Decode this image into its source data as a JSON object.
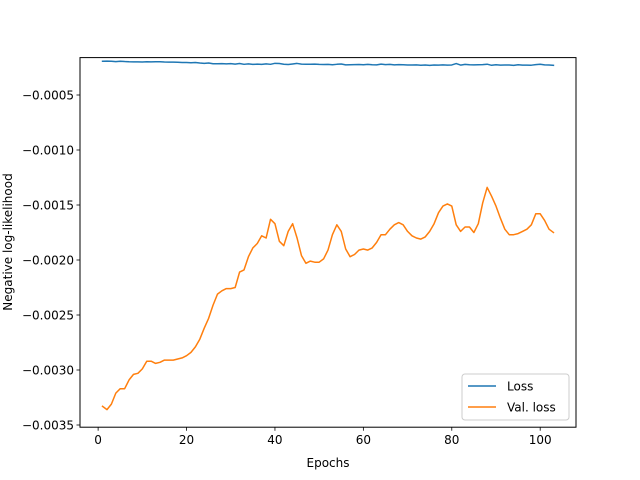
{
  "chart_data": {
    "type": "line",
    "title": "",
    "xlabel": "Epochs",
    "ylabel": "Negative log-likelihood",
    "xlim": [
      -4.1,
      108.1
    ],
    "ylim": [
      -0.00352,
      -0.00016
    ],
    "xticks": [
      0,
      20,
      40,
      60,
      80,
      100
    ],
    "yticks": [
      -0.0035,
      -0.003,
      -0.0025,
      -0.002,
      -0.0015,
      -0.001,
      -0.0005
    ],
    "ytick_labels": [
      "−0.0035",
      "−0.0030",
      "−0.0025",
      "−0.0020",
      "−0.0015",
      "−0.0010",
      "−0.0005"
    ],
    "xtick_labels": [
      "0",
      "20",
      "40",
      "60",
      "80",
      "100"
    ],
    "grid": false,
    "legend": {
      "location": "lower-right",
      "entries": [
        "Loss",
        "Val. loss"
      ]
    },
    "colors": {
      "Loss": "#1f77b4",
      "Val. loss": "#ff7f0e"
    },
    "series": [
      {
        "name": "Loss",
        "x": [
          1,
          2,
          3,
          4,
          5,
          6,
          7,
          8,
          9,
          10,
          11,
          12,
          13,
          14,
          15,
          16,
          17,
          18,
          19,
          20,
          21,
          22,
          23,
          24,
          25,
          26,
          27,
          28,
          29,
          30,
          31,
          32,
          33,
          34,
          35,
          36,
          37,
          38,
          39,
          40,
          41,
          42,
          43,
          44,
          45,
          46,
          47,
          48,
          49,
          50,
          51,
          52,
          53,
          54,
          55,
          56,
          57,
          58,
          59,
          60,
          61,
          62,
          63,
          64,
          65,
          66,
          67,
          68,
          69,
          70,
          71,
          72,
          73,
          74,
          75,
          76,
          77,
          78,
          79,
          80,
          81,
          82,
          83,
          84,
          85,
          86,
          87,
          88,
          89,
          90,
          91,
          92,
          93,
          94,
          95,
          96,
          97,
          98,
          99,
          100,
          101,
          102,
          103
        ],
        "values": [
          -0.000193,
          -0.000192,
          -0.000193,
          -0.000197,
          -0.000193,
          -0.000196,
          -0.000198,
          -0.000199,
          -0.000199,
          -0.0002,
          -0.000198,
          -0.000199,
          -0.000198,
          -0.000198,
          -0.0002,
          -0.000201,
          -0.000201,
          -0.000202,
          -0.000205,
          -0.000204,
          -0.000207,
          -0.000205,
          -0.000209,
          -0.000212,
          -0.000209,
          -0.000216,
          -0.000216,
          -0.000215,
          -0.000217,
          -0.000215,
          -0.000219,
          -0.000214,
          -0.000221,
          -0.000217,
          -0.000222,
          -0.000219,
          -0.000222,
          -0.000217,
          -0.000221,
          -0.000212,
          -0.000214,
          -0.00022,
          -0.000223,
          -0.000218,
          -0.000213,
          -0.000219,
          -0.00022,
          -0.00022,
          -0.000219,
          -0.000222,
          -0.000223,
          -0.000222,
          -0.000225,
          -0.000221,
          -0.000218,
          -0.000226,
          -0.000225,
          -0.000224,
          -0.000223,
          -0.000225,
          -0.000222,
          -0.000225,
          -0.000226,
          -0.000219,
          -0.000224,
          -0.000222,
          -0.000226,
          -0.000224,
          -0.000225,
          -0.000227,
          -0.000227,
          -0.000226,
          -0.000229,
          -0.000227,
          -0.000231,
          -0.000227,
          -0.000228,
          -0.000226,
          -0.000228,
          -0.000227,
          -0.000214,
          -0.000228,
          -0.000222,
          -0.000225,
          -0.000226,
          -0.000225,
          -0.000224,
          -0.00022,
          -0.00023,
          -0.000225,
          -0.000228,
          -0.000227,
          -0.000227,
          -0.000231,
          -0.000225,
          -0.000228,
          -0.000228,
          -0.000229,
          -0.000224,
          -0.00022,
          -0.000226,
          -0.000227,
          -0.00023
        ]
      },
      {
        "name": "Val. loss",
        "x": [
          1,
          2,
          3,
          4,
          5,
          6,
          7,
          8,
          9,
          10,
          11,
          12,
          13,
          14,
          15,
          16,
          17,
          18,
          19,
          20,
          21,
          22,
          23,
          24,
          25,
          26,
          27,
          28,
          29,
          30,
          31,
          32,
          33,
          34,
          35,
          36,
          37,
          38,
          39,
          40,
          41,
          42,
          43,
          44,
          45,
          46,
          47,
          48,
          49,
          50,
          51,
          52,
          53,
          54,
          55,
          56,
          57,
          58,
          59,
          60,
          61,
          62,
          63,
          64,
          65,
          66,
          67,
          68,
          69,
          70,
          71,
          72,
          73,
          74,
          75,
          76,
          77,
          78,
          79,
          80,
          81,
          82,
          83,
          84,
          85,
          86,
          87,
          88,
          89,
          90,
          91,
          92,
          93,
          94,
          95,
          96,
          97,
          98,
          99,
          100,
          101,
          102,
          103
        ],
        "values": [
          -0.00333,
          -0.00336,
          -0.00331,
          -0.00321,
          -0.00317,
          -0.00317,
          -0.00309,
          -0.00304,
          -0.00303,
          -0.00299,
          -0.00292,
          -0.00292,
          -0.00294,
          -0.00293,
          -0.00291,
          -0.00291,
          -0.00291,
          -0.0029,
          -0.00289,
          -0.00287,
          -0.00284,
          -0.00279,
          -0.00272,
          -0.00262,
          -0.00253,
          -0.00241,
          -0.00231,
          -0.00228,
          -0.00226,
          -0.00226,
          -0.00225,
          -0.00211,
          -0.00209,
          -0.00197,
          -0.00189,
          -0.00185,
          -0.00178,
          -0.0018,
          -0.00163,
          -0.00167,
          -0.00183,
          -0.00187,
          -0.00174,
          -0.00167,
          -0.0018,
          -0.00196,
          -0.00203,
          -0.00201,
          -0.00202,
          -0.00202,
          -0.00199,
          -0.00191,
          -0.00177,
          -0.00168,
          -0.00174,
          -0.0019,
          -0.00197,
          -0.00195,
          -0.00191,
          -0.0019,
          -0.00191,
          -0.00189,
          -0.00184,
          -0.00177,
          -0.00177,
          -0.00172,
          -0.00168,
          -0.00166,
          -0.00168,
          -0.00174,
          -0.00178,
          -0.0018,
          -0.00181,
          -0.00179,
          -0.00174,
          -0.00167,
          -0.00157,
          -0.00151,
          -0.00149,
          -0.00151,
          -0.00168,
          -0.00174,
          -0.0017,
          -0.0017,
          -0.00175,
          -0.00167,
          -0.00148,
          -0.00134,
          -0.00142,
          -0.00151,
          -0.00162,
          -0.00172,
          -0.00177,
          -0.00177,
          -0.00176,
          -0.00174,
          -0.00172,
          -0.00168,
          -0.00158,
          -0.00158,
          -0.00164,
          -0.00172,
          -0.00175
        ]
      }
    ]
  }
}
